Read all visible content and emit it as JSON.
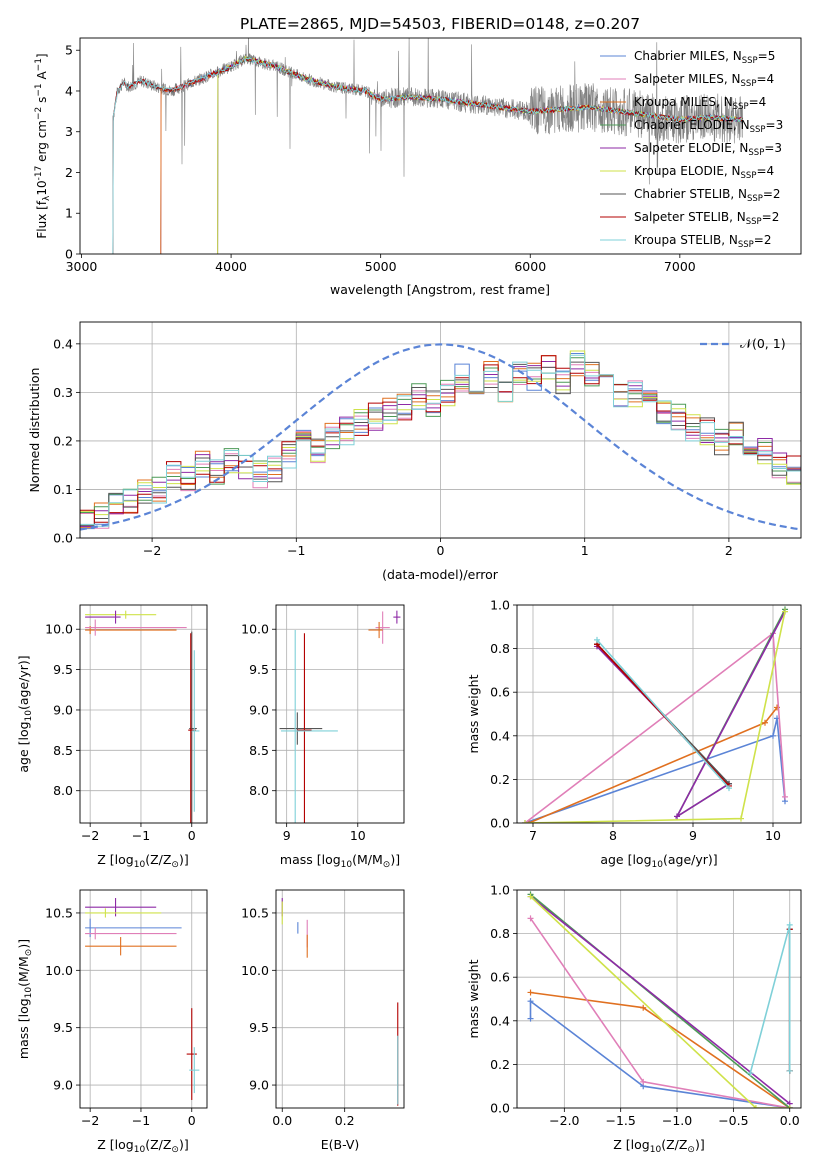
{
  "figure_title": "PLATE=2865, MJD=54503, FIBERID=0148, z=0.207",
  "series_legend": [
    {
      "id": "chab_miles",
      "label": "Chabrier MILES, N",
      "nssp": "=5",
      "color": "#5b84d6"
    },
    {
      "id": "salp_miles",
      "label": "Salpeter MILES, N",
      "nssp": "=4",
      "color": "#e07fb8"
    },
    {
      "id": "krou_miles",
      "label": "Kroupa MILES, N",
      "nssp": "=4",
      "color": "#e07020"
    },
    {
      "id": "chab_elodie",
      "label": "Chabrier ELODIE, N",
      "nssp": "=3",
      "color": "#4c9a57"
    },
    {
      "id": "salp_elodie",
      "label": "Salpeter ELODIE, N",
      "nssp": "=3",
      "color": "#8e2aa6"
    },
    {
      "id": "krou_elodie",
      "label": "Kroupa ELODIE, N",
      "nssp": "=4",
      "color": "#cfe24a"
    },
    {
      "id": "chab_stelib",
      "label": "Chabrier STELIB, N",
      "nssp": "=2",
      "color": "#555555"
    },
    {
      "id": "salp_stelib",
      "label": "Salpeter STELIB, N",
      "nssp": "=2",
      "color": "#b30000"
    },
    {
      "id": "krou_stelib",
      "label": "Kroupa STELIB, N",
      "nssp": "=2",
      "color": "#7fd0d8"
    }
  ],
  "nssp_subscript": "SSP",
  "data_color": "#808080",
  "chart_data": [
    {
      "id": "spectrum",
      "type": "line",
      "xlabel": "wavelength [Angstrom, rest frame]",
      "ylabel": "Flux [f",
      "ylabel_unit": "10",
      "ylabel_exp": "-17",
      "ylabel_tail": " erg cm",
      "xlim": [
        2990,
        7810
      ],
      "ylim": [
        0,
        5.3
      ],
      "xticks": [
        "3000",
        "4000",
        "5000",
        "6000",
        "7000"
      ],
      "yticks": [
        "0",
        "1",
        "2",
        "3",
        "4",
        "5"
      ],
      "continuum": {
        "x": [
          3210,
          3240,
          3280,
          3320,
          3400,
          3500,
          3600,
          3700,
          3800,
          3900,
          4000,
          4100,
          4200,
          4300,
          4500,
          4700,
          4900,
          5000,
          5200,
          5400,
          5600,
          5800,
          6000,
          6200,
          6400,
          6600,
          6800,
          7000,
          7200,
          7400
        ],
        "y": [
          3.3,
          4.0,
          4.2,
          4.1,
          4.25,
          4.1,
          4.0,
          4.15,
          4.3,
          4.45,
          4.6,
          4.8,
          4.7,
          4.6,
          4.3,
          4.1,
          4.0,
          3.8,
          3.85,
          3.8,
          3.7,
          3.6,
          3.5,
          3.55,
          3.6,
          3.5,
          3.4,
          3.3,
          3.35,
          3.3
        ]
      },
      "model_start_wavelength": {
        "chab_miles": 3530,
        "salp_miles": 3530,
        "krou_miles": 3530,
        "chab_elodie": 3910,
        "salp_elodie": 3910,
        "krou_elodie": 3910,
        "chab_stelib": 3210,
        "salp_stelib": 3210,
        "krou_stelib": 3210
      }
    },
    {
      "id": "residual_hist",
      "type": "histogram",
      "xlabel": "(data-model)/error",
      "ylabel": "Normed distribution",
      "xlim": [
        -2.5,
        2.5
      ],
      "ylim": [
        0,
        0.445
      ],
      "xticks": [
        "−2",
        "−1",
        "0",
        "1",
        "2"
      ],
      "yticks": [
        "0.0",
        "0.1",
        "0.2",
        "0.3",
        "0.4"
      ],
      "gaussian_label": "𝒩(0, 1)",
      "gaussian_mean": 0,
      "gaussian_sigma": 1,
      "bin_width": 0.1,
      "profile": [
        0.035,
        0.05,
        0.065,
        0.08,
        0.09,
        0.1,
        0.13,
        0.12,
        0.15,
        0.14,
        0.16,
        0.15,
        0.13,
        0.14,
        0.17,
        0.2,
        0.18,
        0.21,
        0.22,
        0.24,
        0.25,
        0.26,
        0.27,
        0.29,
        0.28,
        0.3,
        0.33,
        0.32,
        0.34,
        0.3,
        0.34,
        0.33,
        0.35,
        0.32,
        0.36,
        0.34,
        0.33,
        0.3,
        0.3,
        0.28,
        0.26,
        0.25,
        0.23,
        0.22,
        0.2,
        0.21,
        0.19,
        0.18,
        0.15,
        0.14,
        0.13,
        0.12,
        0.1,
        0.09,
        0.08,
        0.07,
        0.06,
        0.055,
        0.045,
        0.035
      ]
    },
    {
      "id": "age_vs_Z",
      "type": "errorbar",
      "xlabel": "Z [log",
      "ylabel": "age  [log",
      "xlim": [
        -2.2,
        0.3
      ],
      "ylim": [
        7.6,
        10.3
      ],
      "xticks": [
        "−2",
        "−1",
        "0"
      ],
      "yticks": [
        "8.0",
        "8.5",
        "9.0",
        "9.5",
        "10.0"
      ],
      "points": [
        {
          "s": "krou_elodie",
          "x": -1.3,
          "y": 10.18,
          "xerr": [
            0.8,
            0.6
          ],
          "yerr": 0.05
        },
        {
          "s": "salp_elodie",
          "x": -1.5,
          "y": 10.15,
          "xerr": [
            0.6,
            0.1
          ],
          "yerr": 0.08
        },
        {
          "s": "krou_miles",
          "x": -2.0,
          "y": 9.99,
          "xerr": [
            0.1,
            1.7
          ],
          "yerr": 0.05
        },
        {
          "s": "salp_miles",
          "x": -1.9,
          "y": 10.02,
          "xerr": [
            0.2,
            1.8
          ],
          "yerr": 0.1
        },
        {
          "s": "chab_stelib",
          "x": 0.0,
          "y": 8.77,
          "xerr": [
            0.05,
            0.1
          ],
          "yerr": 1.2
        },
        {
          "s": "salp_stelib",
          "x": -0.02,
          "y": 8.75,
          "xerr": [
            0.05,
            0.1
          ],
          "yerr": 1.2
        },
        {
          "s": "krou_stelib",
          "x": 0.05,
          "y": 8.74,
          "xerr": [
            0.05,
            0.1
          ],
          "yerr": 1.0
        }
      ]
    },
    {
      "id": "age_vs_mass",
      "type": "errorbar",
      "xlabel": "mass [log",
      "ylabel": "",
      "xlim": [
        8.85,
        10.65
      ],
      "ylim": [
        7.6,
        10.3
      ],
      "xticks": [
        "9",
        "10"
      ],
      "yticks": [
        "8.0",
        "8.5",
        "9.0",
        "9.5",
        "10.0"
      ],
      "points": [
        {
          "s": "salp_miles",
          "x": 10.35,
          "y": 10.02,
          "xerr": [
            0.1,
            0.1
          ],
          "yerr": 0.2
        },
        {
          "s": "krou_miles",
          "x": 10.3,
          "y": 9.99,
          "xerr": [
            0.15,
            0.05
          ],
          "yerr": 0.1
        },
        {
          "s": "salp_elodie",
          "x": 10.55,
          "y": 10.15,
          "xerr": [
            0.05,
            0.05
          ],
          "yerr": 0.08
        },
        {
          "s": "chab_stelib",
          "x": 9.15,
          "y": 8.77,
          "xerr": [
            0.25,
            0.35
          ],
          "yerr": 0.2
        },
        {
          "s": "salp_stelib",
          "x": 9.25,
          "y": 8.75,
          "xerr": [
            0.1,
            0.1
          ],
          "yerr": 1.2
        },
        {
          "s": "krou_stelib",
          "x": 9.12,
          "y": 8.74,
          "xerr": [
            0.2,
            0.6
          ],
          "yerr": 1.25
        }
      ]
    },
    {
      "id": "weight_vs_age",
      "type": "line",
      "xlabel": "age  [log",
      "ylabel": "mass weight",
      "xlim": [
        6.8,
        10.35
      ],
      "ylim": [
        0,
        1
      ],
      "xticks": [
        "7",
        "8",
        "9",
        "10"
      ],
      "yticks": [
        "0.0",
        "0.2",
        "0.4",
        "0.6",
        "0.8",
        "1.0"
      ],
      "series": [
        {
          "s": "chab_miles",
          "x": [
            6.9,
            10.0,
            10.05,
            10.15
          ],
          "y": [
            0.0,
            0.4,
            0.48,
            0.1
          ]
        },
        {
          "s": "krou_miles",
          "x": [
            6.95,
            9.9,
            10.05
          ],
          "y": [
            0.0,
            0.46,
            0.53
          ]
        },
        {
          "s": "salp_miles",
          "x": [
            6.9,
            10.0,
            10.15
          ],
          "y": [
            0.0,
            0.87,
            0.12
          ]
        },
        {
          "s": "chab_elodie",
          "x": [
            7.8,
            9.45,
            8.8,
            10.15
          ],
          "y": [
            0.82,
            0.18,
            0.03,
            0.98
          ]
        },
        {
          "s": "salp_elodie",
          "x": [
            7.8,
            9.45,
            8.8,
            10.15
          ],
          "y": [
            0.81,
            0.18,
            0.03,
            0.97
          ]
        },
        {
          "s": "krou_elodie",
          "x": [
            6.9,
            9.6,
            10.15
          ],
          "y": [
            0.0,
            0.02,
            0.97
          ]
        },
        {
          "s": "chab_stelib",
          "x": [
            7.8,
            9.45
          ],
          "y": [
            0.82,
            0.18
          ]
        },
        {
          "s": "salp_stelib",
          "x": [
            7.8,
            9.45
          ],
          "y": [
            0.82,
            0.17
          ]
        },
        {
          "s": "krou_stelib",
          "x": [
            7.8,
            9.45
          ],
          "y": [
            0.84,
            0.16
          ]
        }
      ]
    },
    {
      "id": "mass_vs_Z",
      "type": "errorbar",
      "xlabel": "Z [log",
      "ylabel": "mass [log",
      "xlim": [
        -2.2,
        0.3
      ],
      "ylim": [
        8.8,
        10.7
      ],
      "xticks": [
        "−2",
        "−1",
        "0"
      ],
      "yticks": [
        "9.0",
        "9.5",
        "10.0",
        "10.5"
      ],
      "points": [
        {
          "s": "salp_elodie",
          "x": -1.5,
          "y": 10.55,
          "xerr": [
            0.6,
            0.8
          ],
          "yerr": 0.08
        },
        {
          "s": "krou_elodie",
          "x": -1.7,
          "y": 10.5,
          "xerr": [
            0.4,
            1.1
          ],
          "yerr": 0.04
        },
        {
          "s": "chab_miles",
          "x": -2.0,
          "y": 10.37,
          "xerr": [
            0.1,
            1.8
          ],
          "yerr": 0.08
        },
        {
          "s": "salp_miles",
          "x": -1.9,
          "y": 10.32,
          "xerr": [
            0.2,
            1.6
          ],
          "yerr": 0.05
        },
        {
          "s": "krou_miles",
          "x": -1.4,
          "y": 10.21,
          "xerr": [
            0.7,
            1.1
          ],
          "yerr": 0.08
        },
        {
          "s": "salp_stelib",
          "x": 0.0,
          "y": 9.27,
          "xerr": [
            0.1,
            0.1
          ],
          "yerr": 0.4
        },
        {
          "s": "krou_stelib",
          "x": 0.05,
          "y": 9.13,
          "xerr": [
            0.1,
            0.1
          ],
          "yerr": 0.2
        }
      ]
    },
    {
      "id": "mass_vs_ebv",
      "type": "errorbar",
      "xlabel": "E(B-V)",
      "ylabel": "",
      "xlim": [
        -0.02,
        0.39
      ],
      "ylim": [
        8.8,
        10.7
      ],
      "xticks": [
        "0.0",
        "0.2"
      ],
      "yticks": [
        "9.0",
        "9.5",
        "10.0",
        "10.5"
      ],
      "points": [
        {
          "s": "salp_elodie",
          "x": 0.0,
          "y": 10.55,
          "xerr": [
            0,
            0
          ],
          "yerr": 0.08
        },
        {
          "s": "krou_elodie",
          "x": 0.0,
          "y": 10.5,
          "xerr": [
            0,
            0
          ],
          "yerr": 0.1
        },
        {
          "s": "chab_miles",
          "x": 0.05,
          "y": 10.37,
          "xerr": [
            0,
            0
          ],
          "yerr": 0.05
        },
        {
          "s": "salp_miles",
          "x": 0.08,
          "y": 10.32,
          "xerr": [
            0,
            0
          ],
          "yerr": 0.12
        },
        {
          "s": "krou_miles",
          "x": 0.08,
          "y": 10.21,
          "xerr": [
            0,
            0
          ],
          "yerr": 0.1
        },
        {
          "s": "salp_stelib",
          "x": 0.37,
          "y": 9.27,
          "xerr": [
            0,
            0
          ],
          "yerr": 0.45
        },
        {
          "s": "krou_stelib",
          "x": 0.37,
          "y": 9.13,
          "xerr": [
            0,
            0
          ],
          "yerr": 0.3
        }
      ]
    },
    {
      "id": "weight_vs_Z",
      "type": "line",
      "xlabel": "Z [log",
      "ylabel": "mass weight",
      "xlim": [
        -2.42,
        0.1
      ],
      "ylim": [
        0,
        1
      ],
      "xticks": [
        "−2.0",
        "−1.5",
        "−1.0",
        "−0.5",
        "0.0"
      ],
      "yticks": [
        "0.0",
        "0.2",
        "0.4",
        "0.6",
        "0.8",
        "1.0"
      ],
      "series": [
        {
          "s": "chab_miles",
          "x": [
            -2.3,
            -2.3,
            -1.3,
            0.0
          ],
          "y": [
            0.41,
            0.49,
            0.1,
            0.0
          ]
        },
        {
          "s": "krou_miles",
          "x": [
            -2.3,
            -1.3,
            0.0
          ],
          "y": [
            0.53,
            0.46,
            0.0
          ]
        },
        {
          "s": "salp_miles",
          "x": [
            -2.3,
            -1.3,
            0.0
          ],
          "y": [
            0.87,
            0.12,
            0.0
          ]
        },
        {
          "s": "chab_elodie",
          "x": [
            -2.3,
            0.0
          ],
          "y": [
            0.98,
            0.0
          ]
        },
        {
          "s": "salp_elodie",
          "x": [
            -2.3,
            0.0
          ],
          "y": [
            0.97,
            0.02
          ]
        },
        {
          "s": "krou_elodie",
          "x": [
            -2.3,
            -0.3,
            0.0
          ],
          "y": [
            0.97,
            0.0,
            0.0
          ]
        },
        {
          "s": "chab_stelib",
          "x": [
            0.0,
            0.0
          ],
          "y": [
            0.82,
            0.17
          ]
        },
        {
          "s": "salp_stelib",
          "x": [
            0.0,
            0.0
          ],
          "y": [
            0.82,
            0.17
          ]
        },
        {
          "s": "krou_stelib",
          "x": [
            -0.35,
            0.0,
            0.0
          ],
          "y": [
            0.16,
            0.84,
            0.17
          ]
        }
      ]
    }
  ]
}
